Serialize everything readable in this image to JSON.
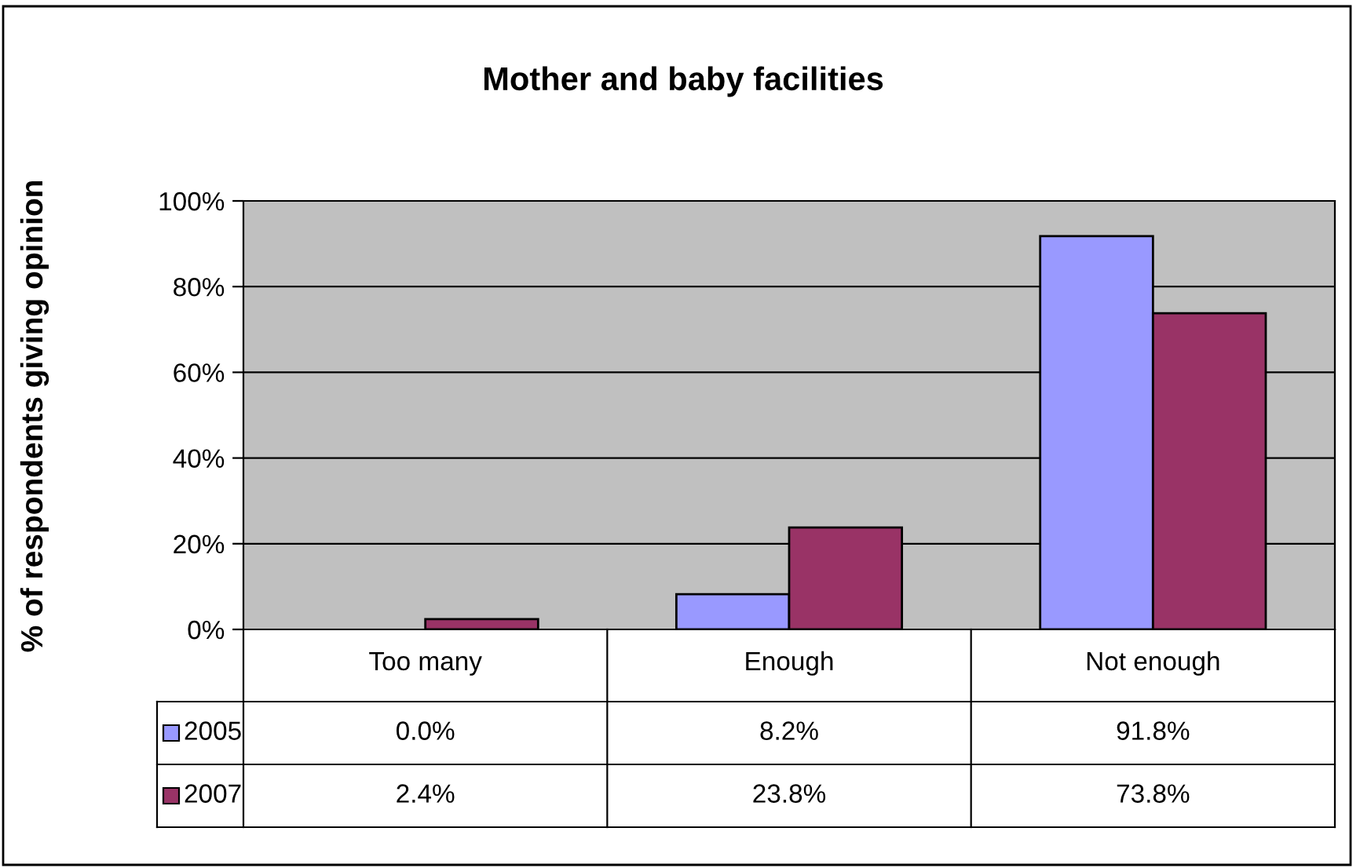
{
  "chart_data": {
    "type": "bar",
    "title": "Mother and baby facilities",
    "ylabel": "% of respondents giving opinion",
    "categories": [
      "Too many",
      "Enough",
      "Not enough"
    ],
    "series": [
      {
        "name": "2005",
        "color": "#9999ff",
        "values": [
          0.0,
          8.2,
          91.8
        ],
        "value_labels": [
          "0.0%",
          "8.2%",
          "91.8%"
        ]
      },
      {
        "name": "2007",
        "color": "#993366",
        "values": [
          2.4,
          23.8,
          73.8
        ],
        "value_labels": [
          "2.4%",
          "23.8%",
          "73.8%"
        ]
      }
    ],
    "ylim": [
      0,
      100
    ],
    "yticks": [
      {
        "value": 0,
        "label": "0%"
      },
      {
        "value": 20,
        "label": "20%"
      },
      {
        "value": 40,
        "label": "40%"
      },
      {
        "value": 60,
        "label": "60%"
      },
      {
        "value": 80,
        "label": "80%"
      },
      {
        "value": 100,
        "label": "100%"
      }
    ],
    "grid": "y",
    "legend": "bottom"
  }
}
